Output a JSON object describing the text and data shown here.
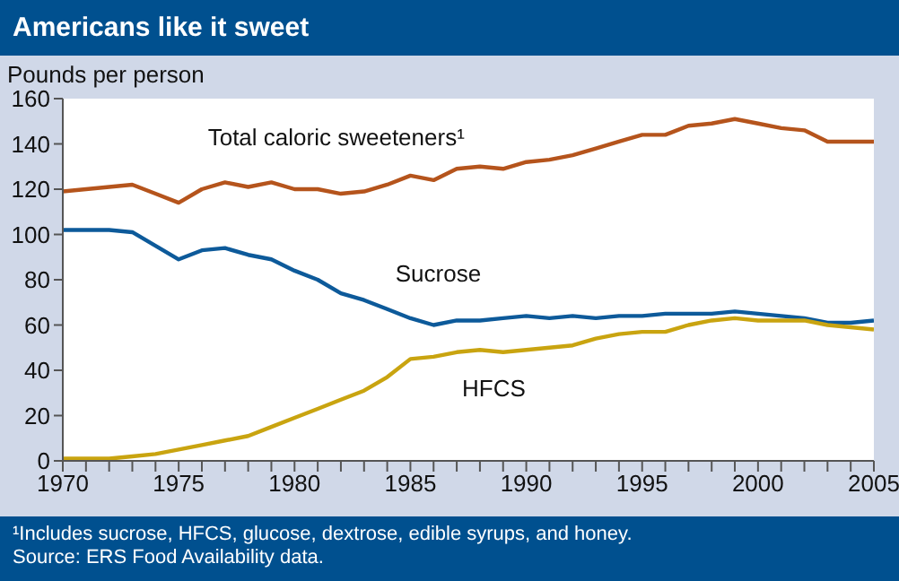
{
  "chart_data": {
    "type": "line",
    "title": "Americans like it sweet",
    "ylabel": "Pounds per person",
    "annotations": [
      "¹Includes sucrose, HFCS, glucose, dextrose, edible syrups, and honey.",
      "Source: ERS Food Availability data."
    ],
    "x": [
      1970,
      1971,
      1972,
      1973,
      1974,
      1975,
      1976,
      1977,
      1978,
      1979,
      1980,
      1981,
      1982,
      1983,
      1984,
      1985,
      1986,
      1987,
      1988,
      1989,
      1990,
      1991,
      1992,
      1993,
      1994,
      1995,
      1996,
      1997,
      1998,
      1999,
      2000,
      2001,
      2002,
      2003,
      2004,
      2005
    ],
    "series": [
      {
        "name": "Total caloric sweeteners¹",
        "color": "#b5541c",
        "values": [
          119,
          120,
          121,
          122,
          118,
          114,
          120,
          123,
          121,
          123,
          120,
          120,
          118,
          119,
          122,
          126,
          124,
          129,
          130,
          129,
          132,
          133,
          135,
          138,
          141,
          144,
          144,
          148,
          149,
          151,
          149,
          147,
          146,
          141,
          141,
          141
        ]
      },
      {
        "name": "Sucrose",
        "color": "#0d5a9a",
        "values": [
          102,
          102,
          102,
          101,
          95,
          89,
          93,
          94,
          91,
          89,
          84,
          80,
          74,
          71,
          67,
          63,
          60,
          62,
          62,
          63,
          64,
          63,
          64,
          63,
          64,
          64,
          65,
          65,
          65,
          66,
          65,
          64,
          63,
          61,
          61,
          62
        ]
      },
      {
        "name": "HFCS",
        "color": "#c9a410",
        "values": [
          1,
          1,
          1,
          2,
          3,
          5,
          7,
          9,
          11,
          15,
          19,
          23,
          27,
          31,
          37,
          45,
          46,
          48,
          49,
          48,
          49,
          50,
          51,
          54,
          56,
          57,
          57,
          60,
          62,
          63,
          62,
          62,
          62,
          60,
          59,
          58
        ]
      }
    ],
    "xlim": [
      1970,
      2005
    ],
    "xticks": [
      1970,
      {
        "value": 1971,
        "label": null
      },
      {
        "value": 1972,
        "label": null
      },
      {
        "value": 1973,
        "label": null
      },
      {
        "value": 1974,
        "label": null
      },
      1975,
      {
        "value": 1976,
        "label": null
      },
      {
        "value": 1977,
        "label": null
      },
      {
        "value": 1978,
        "label": null
      },
      {
        "value": 1979,
        "label": null
      },
      1980,
      {
        "value": 1981,
        "label": null
      },
      {
        "value": 1982,
        "label": null
      },
      {
        "value": 1983,
        "label": null
      },
      {
        "value": 1984,
        "label": null
      },
      1985,
      {
        "value": 1986,
        "label": null
      },
      {
        "value": 1987,
        "label": null
      },
      {
        "value": 1988,
        "label": null
      },
      {
        "value": 1989,
        "label": null
      },
      1990,
      {
        "value": 1991,
        "label": null
      },
      {
        "value": 1992,
        "label": null
      },
      {
        "value": 1993,
        "label": null
      },
      {
        "value": 1994,
        "label": null
      },
      1995,
      {
        "value": 1996,
        "label": null
      },
      {
        "value": 1997,
        "label": null
      },
      {
        "value": 1998,
        "label": null
      },
      {
        "value": 1999,
        "label": null
      },
      2000,
      {
        "value": 2001,
        "label": null
      },
      {
        "value": 2002,
        "label": null
      },
      {
        "value": 2003,
        "label": null
      },
      {
        "value": 2004,
        "label": null
      },
      2005
    ],
    "ylim": [
      0,
      160
    ],
    "yticks": [
      0,
      20,
      40,
      60,
      80,
      100,
      120,
      140,
      160
    ],
    "grid": false,
    "legend": false,
    "marker": "none",
    "line_style": "solid"
  }
}
